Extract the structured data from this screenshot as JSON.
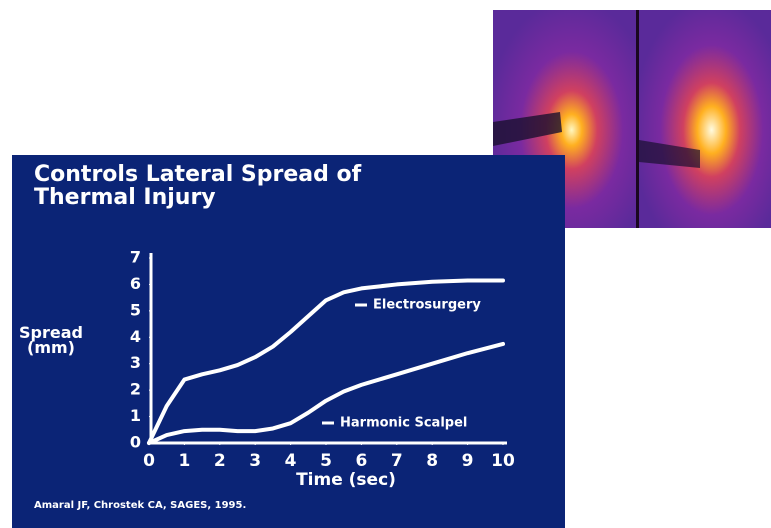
{
  "chart_data": {
    "type": "line",
    "title": "Controls Lateral Spread of Thermal Injury",
    "ylabel": "Spread (mm)",
    "xlabel": "Time (sec)",
    "citation": "Amaral JF, Chrostek CA, SAGES, 1995.",
    "x": [
      0,
      0.5,
      1,
      1.5,
      2,
      2.5,
      3,
      3.5,
      4,
      4.5,
      5,
      5.5,
      6,
      7,
      8,
      9,
      10
    ],
    "series": [
      {
        "name": "Electrosurgery",
        "color": "#ffffff",
        "values": [
          0,
          1.4,
          2.4,
          2.6,
          2.75,
          2.95,
          3.25,
          3.65,
          4.2,
          4.8,
          5.4,
          5.7,
          5.85,
          6.0,
          6.1,
          6.15,
          6.15
        ]
      },
      {
        "name": "Harmonic Scalpel",
        "color": "#ffffff",
        "values": [
          0,
          0.3,
          0.45,
          0.5,
          0.5,
          0.45,
          0.45,
          0.55,
          0.75,
          1.15,
          1.6,
          1.95,
          2.2,
          2.6,
          3.0,
          3.4,
          3.75
        ]
      }
    ],
    "xlim": [
      0,
      10
    ],
    "xticks": [
      0,
      1,
      2,
      3,
      4,
      5,
      6,
      7,
      8,
      9,
      10
    ],
    "ylim": [
      0,
      7
    ],
    "yticks": [
      0,
      1,
      2,
      3,
      4,
      5,
      6,
      7
    ],
    "grid": false
  }
}
